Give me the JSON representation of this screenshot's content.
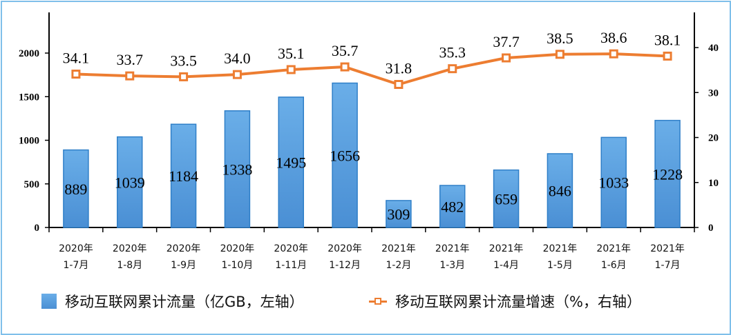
{
  "chart_data": {
    "type": "bar+line",
    "title": "",
    "categories": [
      "2020年\n1-7月",
      "2020年\n1-8月",
      "2020年\n1-9月",
      "2020年\n1-10月",
      "2020年\n1-11月",
      "2020年\n1-12月",
      "2021年\n1-2月",
      "2021年\n1-3月",
      "2021年\n1-4月",
      "2021年\n1-5月",
      "2021年\n1-6月",
      "2021年\n1-7月"
    ],
    "category_lines": [
      [
        "2020年",
        "1-7月"
      ],
      [
        "2020年",
        "1-8月"
      ],
      [
        "2020年",
        "1-9月"
      ],
      [
        "2020年",
        "1-10月"
      ],
      [
        "2020年",
        "1-11月"
      ],
      [
        "2020年",
        "1-12月"
      ],
      [
        "2021年",
        "1-2月"
      ],
      [
        "2021年",
        "1-3月"
      ],
      [
        "2021年",
        "1-4月"
      ],
      [
        "2021年",
        "1-5月"
      ],
      [
        "2021年",
        "1-6月"
      ],
      [
        "2021年",
        "1-7月"
      ]
    ],
    "series": [
      {
        "name": "移动互联网累计流量（亿GB，左轴）",
        "type": "bar",
        "axis": "left",
        "color": "#5b9bd5",
        "values": [
          889,
          1039,
          1184,
          1338,
          1495,
          1656,
          309,
          482,
          659,
          846,
          1033,
          1228
        ]
      },
      {
        "name": "移动互联网累计流量增速（%，右轴）",
        "type": "line",
        "axis": "right",
        "color": "#ed7d31",
        "values": [
          34.1,
          33.7,
          33.5,
          34.0,
          35.1,
          35.7,
          31.8,
          35.3,
          37.7,
          38.5,
          38.6,
          38.1
        ]
      }
    ],
    "left_axis": {
      "ticks": [
        0,
        500,
        1000,
        1500,
        2000
      ],
      "ylim": [
        0,
        2400
      ]
    },
    "right_axis": {
      "ticks": [
        0,
        10,
        20,
        30,
        40
      ],
      "ylim": [
        0,
        48
      ]
    },
    "grid": false,
    "legend_position": "bottom",
    "xlabel": "",
    "ylabel": ""
  },
  "legend": {
    "bar_label": "移动互联网累计流量（亿GB，左轴）",
    "line_label": "移动互联网累计流量增速（%，右轴）"
  },
  "colors": {
    "bar_top": "#6aaee8",
    "bar_bottom": "#4a8fd4",
    "bar_border": "#2f7fc8",
    "line": "#ed7d31",
    "frame": "#7fbfea"
  }
}
